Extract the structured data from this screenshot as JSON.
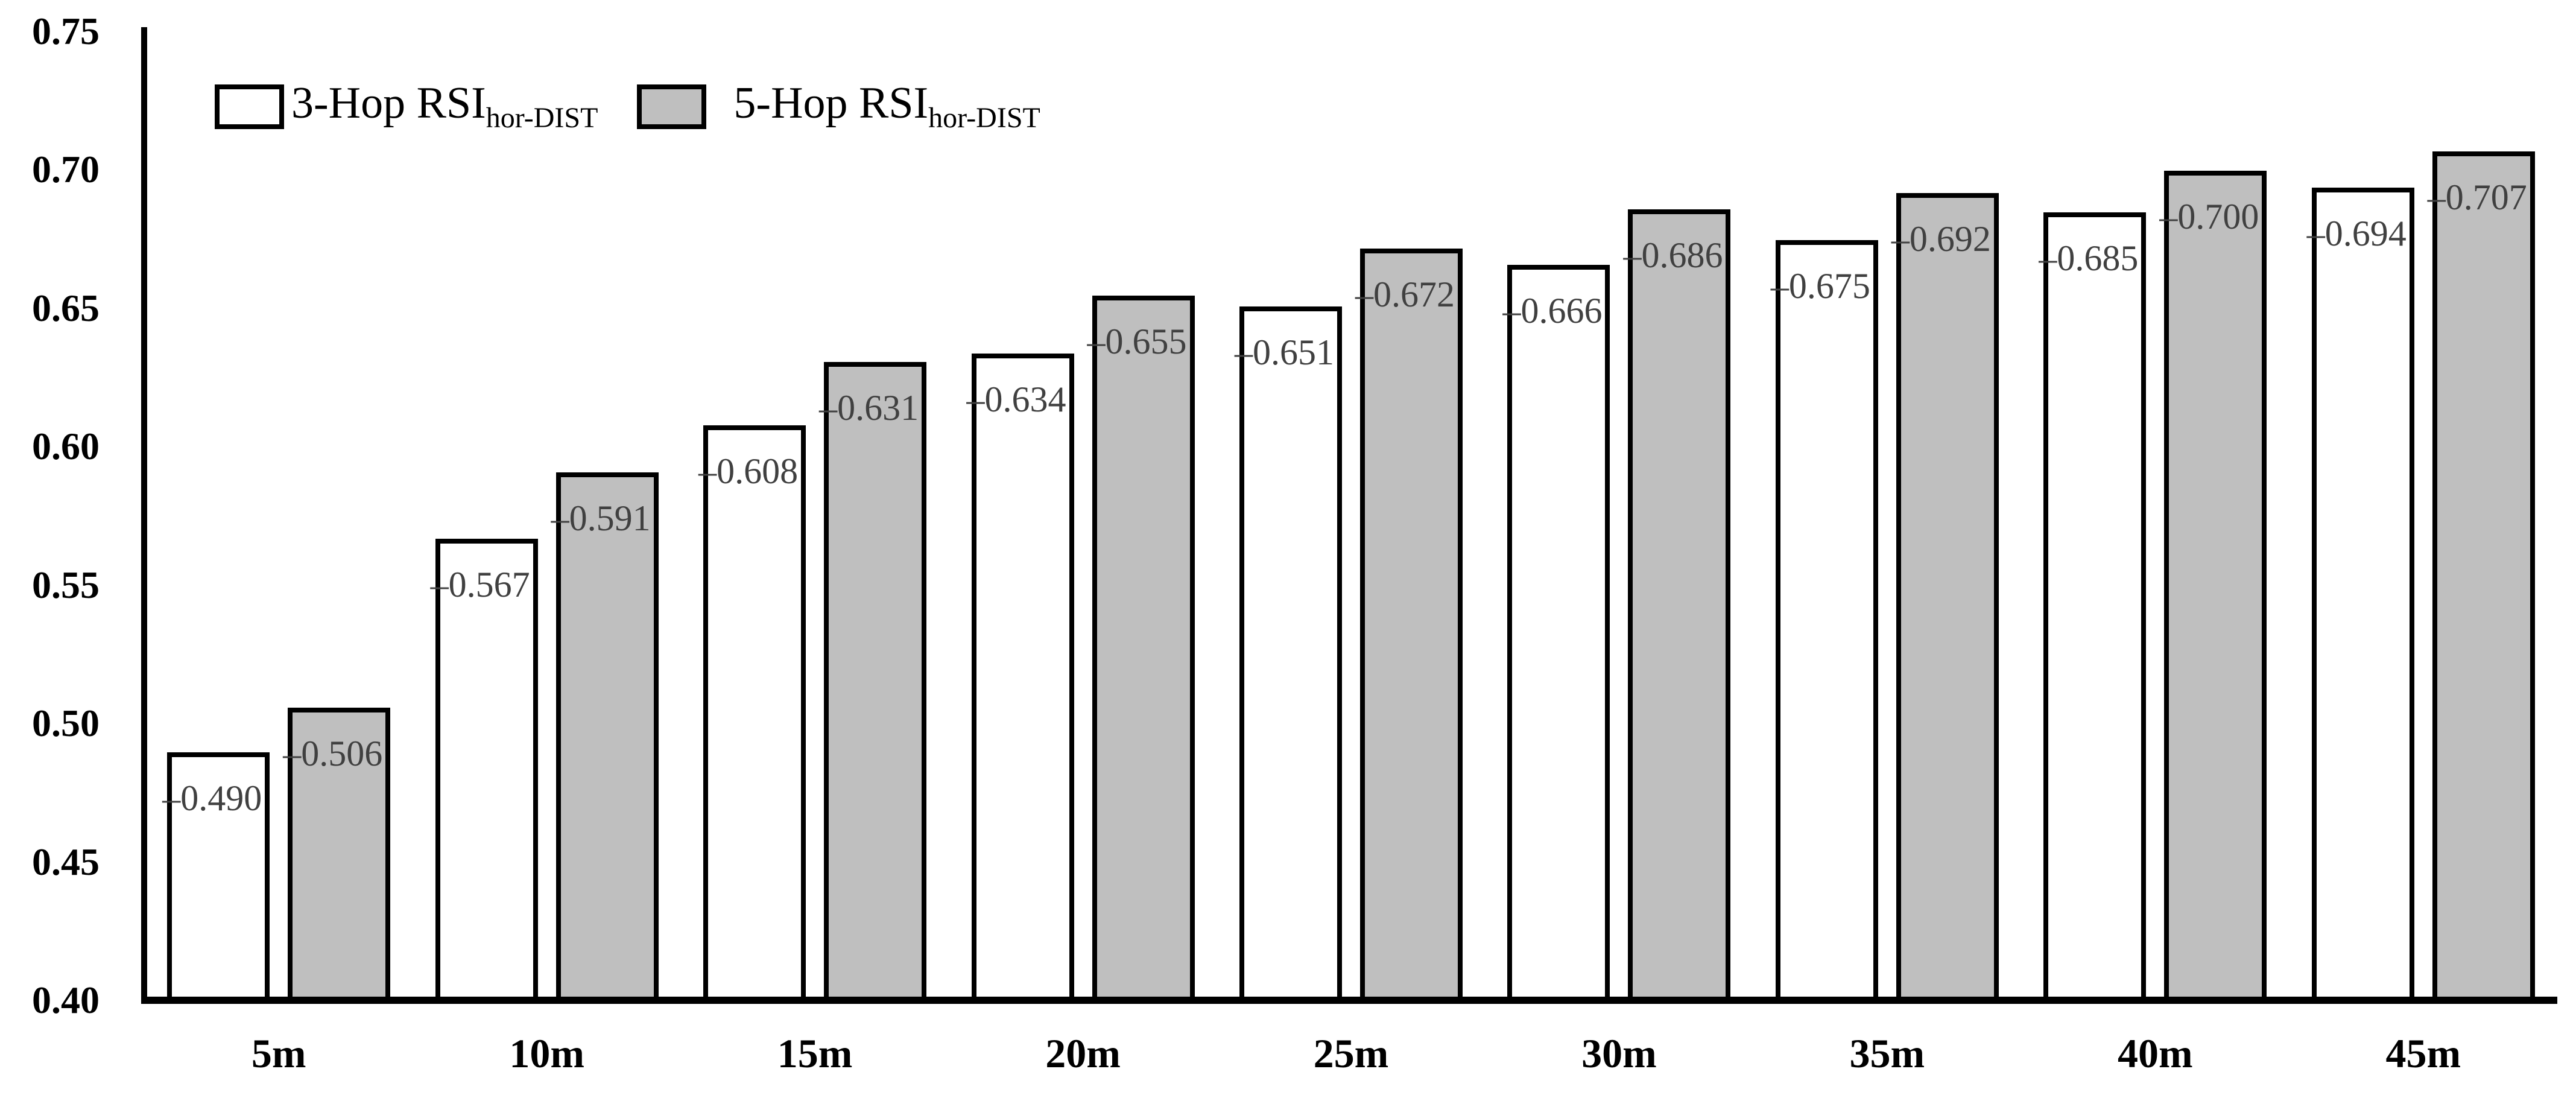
{
  "chart_data": {
    "type": "bar",
    "title": "",
    "xlabel": "",
    "ylabel": "",
    "categories": [
      "5m",
      "10m",
      "15m",
      "20m",
      "25m",
      "30m",
      "35m",
      "40m",
      "45m"
    ],
    "series": [
      {
        "name": "3-Hop RSI",
        "name_subscript": "hor-DIST",
        "fill": "#ffffff",
        "values": [
          0.49,
          0.567,
          0.608,
          0.634,
          0.651,
          0.666,
          0.675,
          0.685,
          0.694
        ],
        "data_labels": [
          "–0.490",
          "–0.567",
          "–0.608",
          "–0.634",
          "–0.651",
          "–0.666",
          "–0.675",
          "–0.685",
          "–0.694"
        ]
      },
      {
        "name": "5-Hop RSI",
        "name_subscript": "hor-DIST",
        "fill": "#bfbfbf",
        "values": [
          0.506,
          0.591,
          0.631,
          0.655,
          0.672,
          0.686,
          0.692,
          0.7,
          0.707
        ],
        "data_labels": [
          "–0.506",
          "–0.591",
          "–0.631",
          "–0.655",
          "–0.672",
          "–0.686",
          "–0.692",
          "–0.700",
          "–0.707"
        ]
      }
    ],
    "y_axis": {
      "min": 0.4,
      "max": 0.75,
      "step": 0.05,
      "tick_labels": [
        "0.40",
        "0.45",
        "0.50",
        "0.55",
        "0.60",
        "0.65",
        "0.70",
        "0.75"
      ]
    },
    "grid": false,
    "legend_position": "top-left",
    "colors": {
      "axis": "#000000",
      "bar_border": "#000000",
      "data_label_text": "#404040",
      "series_fills": [
        "#ffffff",
        "#bfbfbf"
      ]
    }
  }
}
